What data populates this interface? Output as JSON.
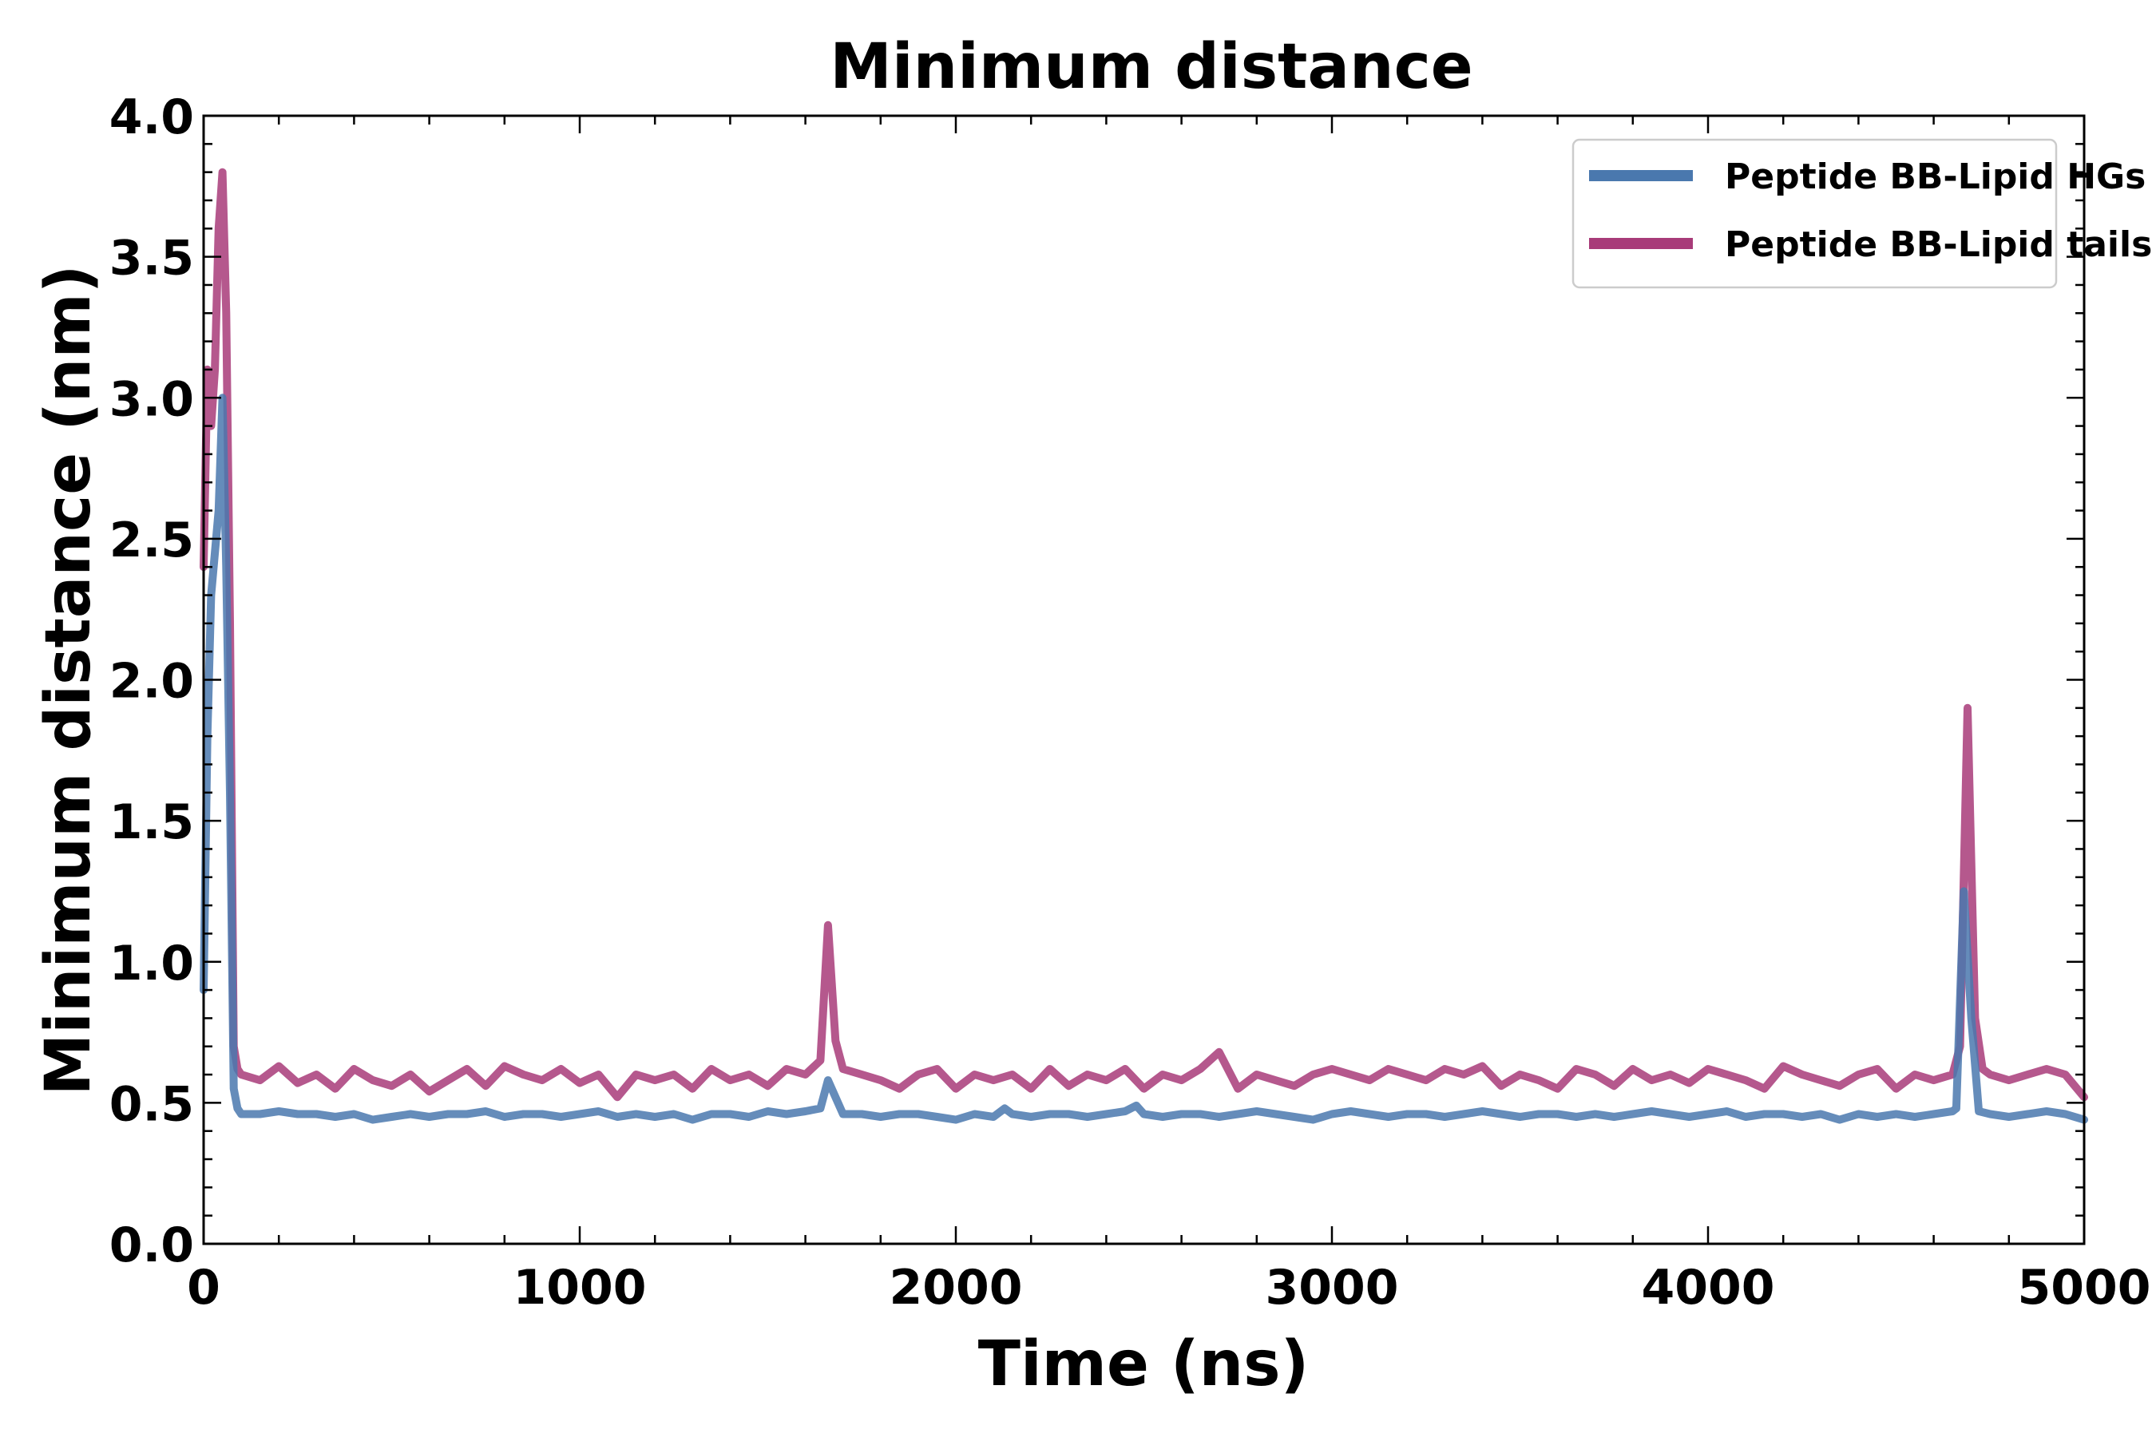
{
  "chart_data": {
    "type": "line",
    "title": "Minimum distance",
    "xlabel": "Time (ns)",
    "ylabel": "Minimum distance (nm)",
    "xlim": [
      0,
      5000
    ],
    "ylim": [
      0.0,
      4.0
    ],
    "x_ticks": [
      0,
      1000,
      2000,
      3000,
      4000,
      5000
    ],
    "x_tick_labels": [
      "0",
      "1000",
      "2000",
      "3000",
      "4000",
      "5000"
    ],
    "y_ticks": [
      0.0,
      0.5,
      1.0,
      1.5,
      2.0,
      2.5,
      3.0,
      3.5,
      4.0
    ],
    "y_tick_labels": [
      "0.0",
      "0.5",
      "1.0",
      "1.5",
      "2.0",
      "2.5",
      "3.0",
      "3.5",
      "4.0"
    ],
    "grid": false,
    "legend_position": "top-right",
    "series": [
      {
        "name": "Peptide BB-Lipid HGs",
        "color": "#4a78ae",
        "x": [
          0,
          10,
          20,
          30,
          40,
          50,
          60,
          70,
          80,
          90,
          100,
          150,
          200,
          250,
          300,
          350,
          400,
          450,
          500,
          550,
          600,
          650,
          700,
          750,
          800,
          850,
          900,
          950,
          1000,
          1050,
          1100,
          1150,
          1200,
          1250,
          1300,
          1350,
          1400,
          1450,
          1500,
          1550,
          1600,
          1640,
          1660,
          1680,
          1700,
          1750,
          1800,
          1850,
          1900,
          1950,
          2000,
          2050,
          2100,
          2130,
          2150,
          2200,
          2250,
          2300,
          2350,
          2400,
          2450,
          2480,
          2500,
          2550,
          2600,
          2650,
          2700,
          2750,
          2800,
          2850,
          2900,
          2950,
          3000,
          3050,
          3100,
          3150,
          3200,
          3250,
          3300,
          3350,
          3400,
          3450,
          3500,
          3550,
          3600,
          3650,
          3700,
          3750,
          3800,
          3850,
          3900,
          3950,
          4000,
          4050,
          4100,
          4150,
          4200,
          4250,
          4300,
          4350,
          4400,
          4450,
          4500,
          4550,
          4600,
          4650,
          4660,
          4680,
          4700,
          4720,
          4750,
          4800,
          4850,
          4900,
          4950,
          5000
        ],
        "y": [
          0.9,
          1.8,
          2.3,
          2.45,
          2.6,
          3.0,
          2.4,
          1.6,
          0.55,
          0.48,
          0.46,
          0.46,
          0.47,
          0.46,
          0.46,
          0.45,
          0.46,
          0.44,
          0.45,
          0.46,
          0.45,
          0.46,
          0.46,
          0.47,
          0.45,
          0.46,
          0.46,
          0.45,
          0.46,
          0.47,
          0.45,
          0.46,
          0.45,
          0.46,
          0.44,
          0.46,
          0.46,
          0.45,
          0.47,
          0.46,
          0.47,
          0.48,
          0.58,
          0.52,
          0.46,
          0.46,
          0.45,
          0.46,
          0.46,
          0.45,
          0.44,
          0.46,
          0.45,
          0.48,
          0.46,
          0.45,
          0.46,
          0.46,
          0.45,
          0.46,
          0.47,
          0.49,
          0.46,
          0.45,
          0.46,
          0.46,
          0.45,
          0.46,
          0.47,
          0.46,
          0.45,
          0.44,
          0.46,
          0.47,
          0.46,
          0.45,
          0.46,
          0.46,
          0.45,
          0.46,
          0.47,
          0.46,
          0.45,
          0.46,
          0.46,
          0.45,
          0.46,
          0.45,
          0.46,
          0.47,
          0.46,
          0.45,
          0.46,
          0.47,
          0.45,
          0.46,
          0.46,
          0.45,
          0.46,
          0.44,
          0.46,
          0.45,
          0.46,
          0.45,
          0.46,
          0.47,
          0.48,
          1.25,
          0.8,
          0.47,
          0.46,
          0.45,
          0.46,
          0.47,
          0.46,
          0.44
        ]
      },
      {
        "name": "Peptide BB-Lipid tails",
        "color": "#a83b79",
        "x": [
          0,
          10,
          20,
          30,
          40,
          50,
          60,
          70,
          80,
          90,
          100,
          150,
          200,
          250,
          300,
          350,
          400,
          450,
          500,
          550,
          600,
          650,
          700,
          750,
          800,
          850,
          900,
          950,
          1000,
          1050,
          1100,
          1150,
          1200,
          1250,
          1300,
          1350,
          1400,
          1450,
          1500,
          1550,
          1600,
          1640,
          1660,
          1680,
          1700,
          1750,
          1800,
          1850,
          1900,
          1950,
          2000,
          2050,
          2100,
          2150,
          2200,
          2250,
          2300,
          2350,
          2400,
          2450,
          2500,
          2550,
          2600,
          2650,
          2700,
          2750,
          2800,
          2850,
          2900,
          2950,
          3000,
          3050,
          3100,
          3150,
          3200,
          3250,
          3300,
          3350,
          3400,
          3450,
          3500,
          3550,
          3600,
          3650,
          3700,
          3750,
          3800,
          3850,
          3900,
          3950,
          4000,
          4050,
          4100,
          4150,
          4200,
          4250,
          4300,
          4350,
          4400,
          4450,
          4500,
          4550,
          4600,
          4650,
          4670,
          4690,
          4710,
          4730,
          4750,
          4800,
          4850,
          4900,
          4950,
          5000
        ],
        "y": [
          2.4,
          3.1,
          2.9,
          3.1,
          3.6,
          3.8,
          3.3,
          2.2,
          0.7,
          0.62,
          0.6,
          0.58,
          0.63,
          0.57,
          0.6,
          0.55,
          0.62,
          0.58,
          0.56,
          0.6,
          0.54,
          0.58,
          0.62,
          0.56,
          0.63,
          0.6,
          0.58,
          0.62,
          0.57,
          0.6,
          0.52,
          0.6,
          0.58,
          0.6,
          0.55,
          0.62,
          0.58,
          0.6,
          0.56,
          0.62,
          0.6,
          0.65,
          1.13,
          0.72,
          0.62,
          0.6,
          0.58,
          0.55,
          0.6,
          0.62,
          0.55,
          0.6,
          0.58,
          0.6,
          0.55,
          0.62,
          0.56,
          0.6,
          0.58,
          0.62,
          0.55,
          0.6,
          0.58,
          0.62,
          0.68,
          0.55,
          0.6,
          0.58,
          0.56,
          0.6,
          0.62,
          0.6,
          0.58,
          0.62,
          0.6,
          0.58,
          0.62,
          0.6,
          0.63,
          0.56,
          0.6,
          0.58,
          0.55,
          0.62,
          0.6,
          0.56,
          0.62,
          0.58,
          0.6,
          0.57,
          0.62,
          0.6,
          0.58,
          0.55,
          0.63,
          0.6,
          0.58,
          0.56,
          0.6,
          0.62,
          0.55,
          0.6,
          0.58,
          0.6,
          0.7,
          1.9,
          0.8,
          0.62,
          0.6,
          0.58,
          0.6,
          0.62,
          0.6,
          0.52
        ]
      }
    ]
  }
}
